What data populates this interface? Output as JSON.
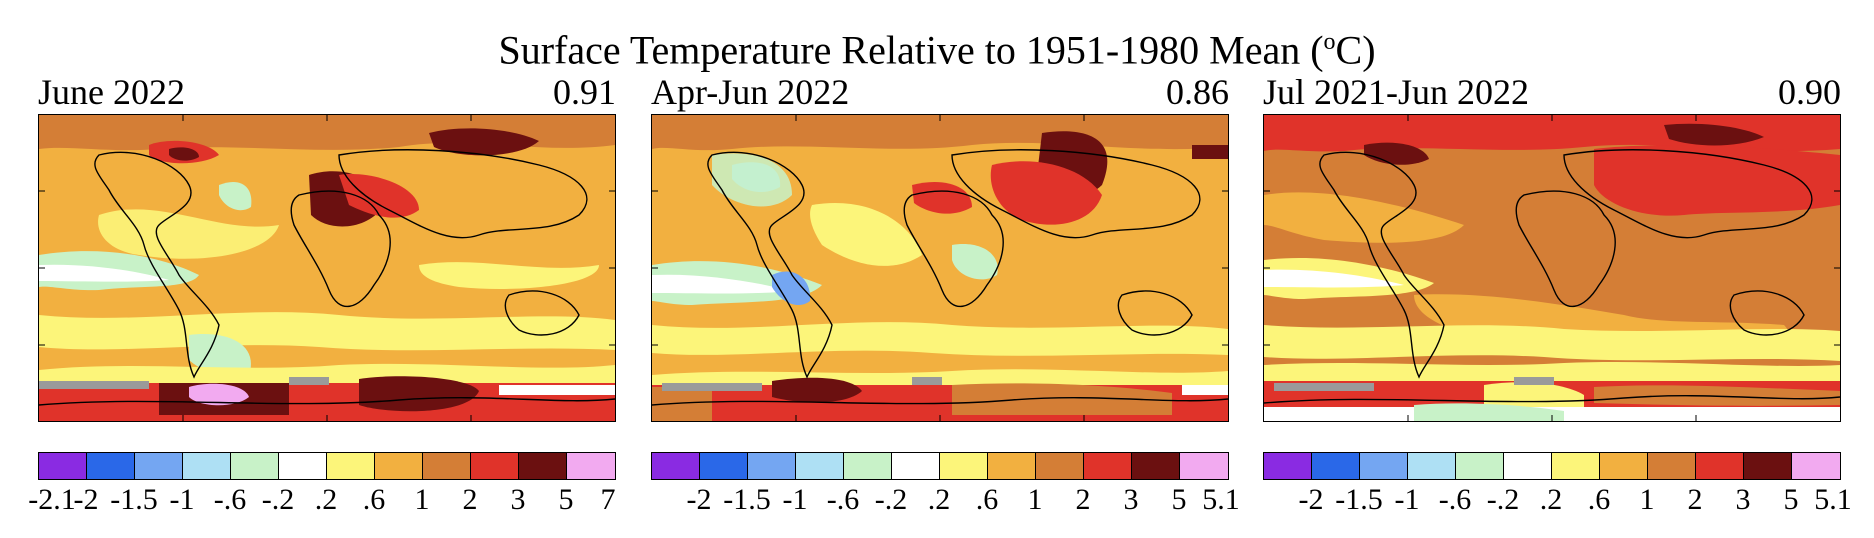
{
  "title": {
    "main": "Surface Temperature Relative to 1951-1980 Mean (",
    "sup": "o",
    "unit": "C)"
  },
  "colors": [
    "#8a2be2",
    "#2a68e8",
    "#74a6f2",
    "#aee0f4",
    "#c8f2c8",
    "#ffffff",
    "#fcf57a",
    "#f2b040",
    "#d47e36",
    "#e0332a",
    "#6b1010",
    "#f2aaf0"
  ],
  "panels": [
    {
      "label": "June 2022",
      "value": "0.91",
      "ticks": [
        "-2.1",
        "-2",
        "-1.5",
        "-1",
        "-.6",
        "-.2",
        ".2",
        ".6",
        "1",
        "2",
        "3",
        "5",
        "7"
      ]
    },
    {
      "label": "Apr-Jun 2022",
      "value": "0.86",
      "ticks": [
        "",
        "-2",
        "-1.5",
        "-1",
        "-.6",
        "-.2",
        ".2",
        ".6",
        "1",
        "2",
        "3",
        "5",
        "5.1"
      ]
    },
    {
      "label": "Jul 2021-Jun 2022",
      "value": "0.90",
      "ticks": [
        "",
        "-2",
        "-1.5",
        "-1",
        "-.6",
        "-.2",
        ".2",
        ".6",
        "1",
        "2",
        "3",
        "5",
        "5.1"
      ]
    }
  ]
}
